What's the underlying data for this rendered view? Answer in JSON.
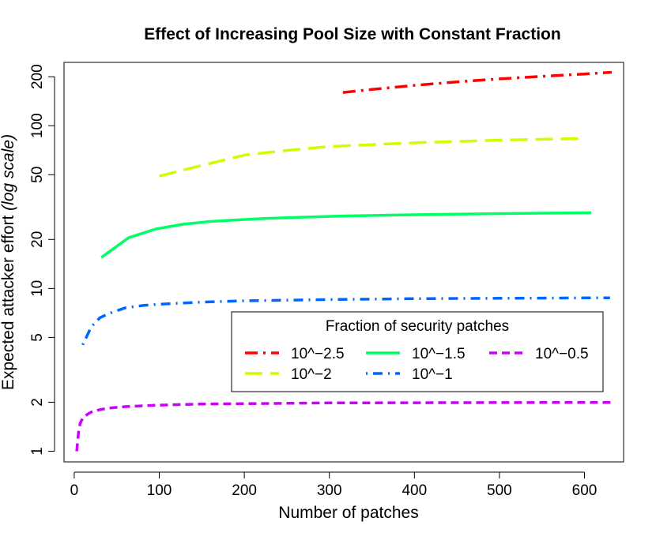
{
  "chart_data": {
    "type": "line",
    "title": "Effect of Increasing Pool Size with Constant Fraction",
    "xlabel": "Number of patches",
    "ylabel_main": "Expected attacker effort ",
    "ylabel_italic": "(log scale)",
    "xlim": [
      -12,
      646
    ],
    "ylim": [
      0.86,
      245
    ],
    "yscale": "log",
    "xticks": [
      0,
      100,
      200,
      300,
      400,
      500,
      600
    ],
    "xtick_labels": [
      "0",
      "100",
      "200",
      "300",
      "400",
      "500",
      "600"
    ],
    "yticks": [
      1,
      2,
      5,
      10,
      20,
      50,
      100,
      200
    ],
    "ytick_labels": [
      "1",
      "2",
      "5",
      "10",
      "20",
      "50",
      "100",
      "200"
    ],
    "legend": {
      "title": "Fraction of security patches",
      "placement": "center-right"
    },
    "series": [
      {
        "name": "10^−2.5",
        "color": "#ff0000",
        "dash": "longdash-dot",
        "x": [
          316,
          350,
          400,
          450,
          500,
          550,
          600,
          632
        ],
        "y": [
          160,
          167,
          177,
          186,
          194,
          201,
          208,
          213
        ]
      },
      {
        "name": "10^−2",
        "color": "#ccff00",
        "dash": "longdash",
        "x": [
          100,
          150,
          200,
          250,
          300,
          350,
          400,
          450,
          500,
          550,
          600,
          600
        ],
        "y": [
          49,
          57,
          66,
          70.5,
          74.5,
          76.5,
          78.5,
          80,
          81.5,
          82.5,
          83.5,
          83.5
        ]
      },
      {
        "name": "10^−1.5",
        "color": "#00ff66",
        "dash": "solid",
        "x": [
          32,
          64,
          96,
          128,
          160,
          192,
          224,
          256,
          320,
          384,
          448,
          512,
          576,
          608
        ],
        "y": [
          15.5,
          20.5,
          23.2,
          24.8,
          25.8,
          26.4,
          26.9,
          27.3,
          27.9,
          28.3,
          28.6,
          28.9,
          29.1,
          29.2
        ]
      },
      {
        "name": "10^−1",
        "color": "#0066ff",
        "dash": "dot-dash",
        "x": [
          10,
          20,
          30,
          40,
          60,
          80,
          100,
          150,
          200,
          300,
          400,
          500,
          600,
          630
        ],
        "y": [
          4.5,
          5.8,
          6.6,
          7.0,
          7.6,
          7.85,
          8.0,
          8.25,
          8.4,
          8.55,
          8.65,
          8.7,
          8.75,
          8.75
        ]
      },
      {
        "name": "10^−0.5",
        "color": "#cc00ff",
        "dash": "dashed",
        "x": [
          3,
          5,
          7,
          10,
          15,
          20,
          30,
          40,
          60,
          80,
          100,
          150,
          200,
          300,
          400,
          500,
          600,
          632
        ],
        "y": [
          1.0,
          1.3,
          1.48,
          1.6,
          1.68,
          1.74,
          1.8,
          1.84,
          1.88,
          1.9,
          1.92,
          1.95,
          1.96,
          1.98,
          1.985,
          1.99,
          1.995,
          1.995
        ]
      }
    ]
  }
}
